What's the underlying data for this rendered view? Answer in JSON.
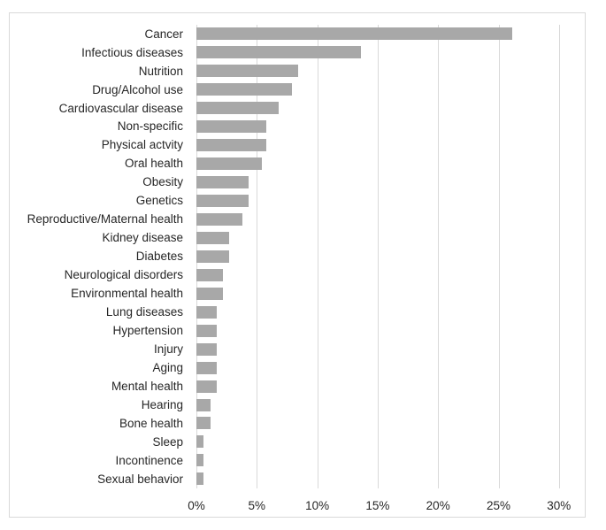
{
  "chart_data": {
    "type": "bar",
    "orientation": "horizontal",
    "title": "",
    "xlabel": "",
    "ylabel": "",
    "xlim": [
      0,
      30
    ],
    "grid": true,
    "legend": false,
    "categories": [
      "Cancer",
      "Infectious diseases",
      "Nutrition",
      "Drug/Alcohol use",
      "Cardiovascular disease",
      "Non-specific",
      "Physical actvity",
      "Oral health",
      "Obesity",
      "Genetics",
      "Reproductive/Maternal health",
      "Kidney disease",
      "Diabetes",
      "Neurological disorders",
      "Environmental health",
      "Lung diseases",
      "Hypertension",
      "Injury",
      "Aging",
      "Mental health",
      "Hearing",
      "Bone health",
      "Sleep",
      "Incontinence",
      "Sexual behavior"
    ],
    "values": [
      26.1,
      13.6,
      8.4,
      7.9,
      6.8,
      5.8,
      5.8,
      5.4,
      4.3,
      4.3,
      3.8,
      2.7,
      2.7,
      2.2,
      2.2,
      1.7,
      1.7,
      1.7,
      1.7,
      1.7,
      1.2,
      1.2,
      0.6,
      0.6,
      0.6
    ],
    "x_ticks": [
      "0%",
      "5%",
      "10%",
      "15%",
      "20%",
      "25%",
      "30%"
    ],
    "x_tick_values": [
      0,
      5,
      10,
      15,
      20,
      25,
      30
    ],
    "colors": {
      "bar": "#a8a8a8",
      "gridline": "#d9d9d9",
      "frame_border": "#d9d9d9",
      "label_text": "#262626"
    }
  }
}
